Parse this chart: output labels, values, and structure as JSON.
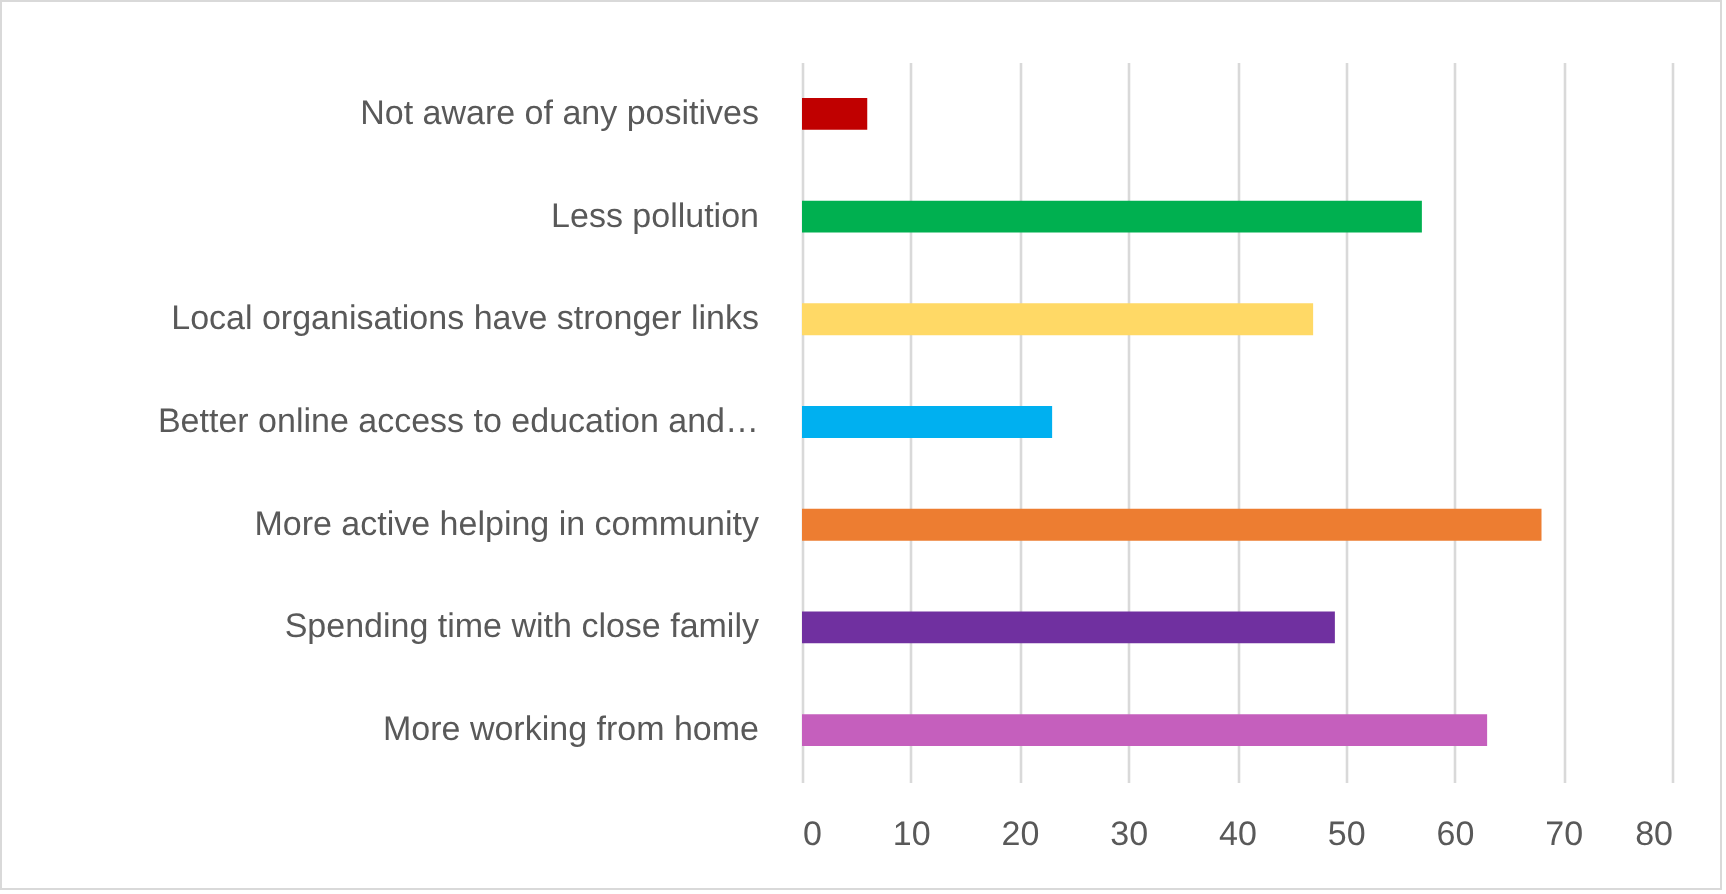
{
  "chart_data": {
    "type": "bar",
    "orientation": "horizontal",
    "categories": [
      "Not aware of any positives",
      "Less pollution",
      "Local organisations have stronger links",
      "Better online access to education and…",
      "More active helping in community",
      "Spending time with close family",
      "More working from home"
    ],
    "values": [
      6,
      57,
      47,
      23,
      68,
      49,
      63
    ],
    "colors": [
      "#c00000",
      "#00b050",
      "#ffd966",
      "#00b0f0",
      "#ed7d31",
      "#7030a0",
      "#c55fbd"
    ],
    "xlim": [
      0,
      80
    ],
    "xticks": [
      0,
      10,
      20,
      30,
      40,
      50,
      60,
      70,
      80
    ],
    "grid": "x"
  }
}
